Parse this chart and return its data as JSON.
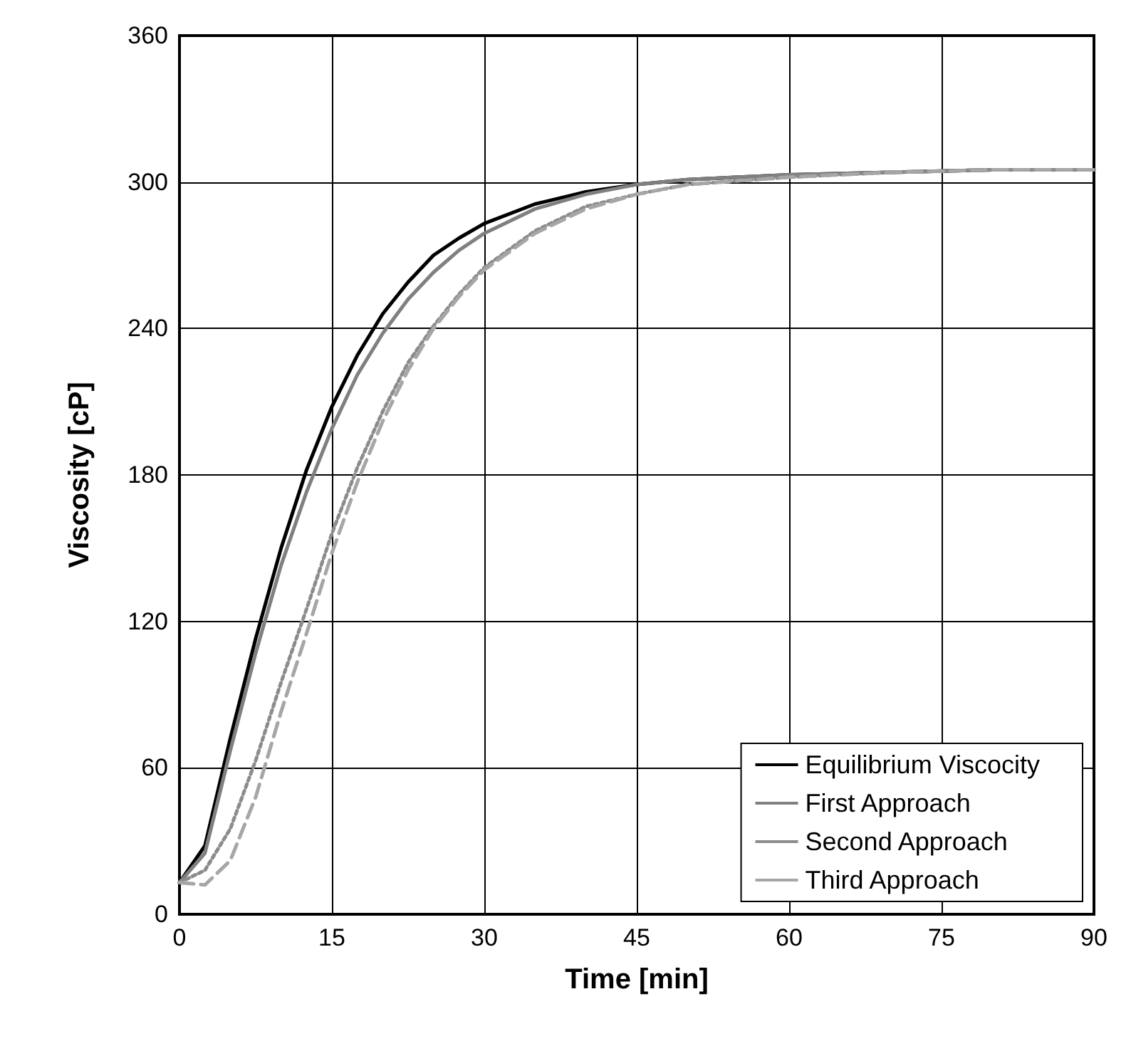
{
  "chart_data": {
    "type": "line",
    "xlabel": "Time [min]",
    "ylabel": "Viscosity [cP]",
    "x": [
      0,
      2.5,
      5,
      7.5,
      10,
      12.5,
      15,
      17.5,
      20,
      22.5,
      25,
      27.5,
      30,
      35,
      40,
      45,
      50,
      60,
      70,
      80,
      90
    ],
    "series": [
      {
        "name": "Equilibrium Viscocity",
        "color": "#000000",
        "line_style": "solid",
        "values": [
          13,
          28,
          72,
          113,
          150,
          182,
          208,
          229,
          246,
          259,
          270,
          277,
          283,
          291,
          296,
          299,
          301,
          303,
          304,
          305,
          305
        ]
      },
      {
        "name": "First Approach",
        "color": "#808080",
        "line_style": "solid",
        "values": [
          13,
          25,
          67,
          107,
          143,
          173,
          199,
          221,
          238,
          252,
          263,
          272,
          279,
          289,
          295,
          299,
          301,
          303,
          304,
          305,
          305
        ]
      },
      {
        "name": "Second Approach",
        "color": "#8c8c8c",
        "line_style": "dotted",
        "values": [
          13,
          18,
          35,
          63,
          95,
          125,
          156,
          183,
          206,
          226,
          241,
          254,
          265,
          280,
          290,
          295,
          299,
          302,
          304,
          305,
          305
        ]
      },
      {
        "name": "Third Approach",
        "color": "#a6a6a6",
        "line_style": "dashed",
        "values": [
          13,
          12,
          22,
          48,
          83,
          115,
          148,
          177,
          202,
          223,
          240,
          253,
          264,
          279,
          289,
          295,
          299,
          302,
          304,
          305,
          305
        ]
      }
    ],
    "xlim": [
      0,
      90
    ],
    "xticks": [
      0,
      15,
      30,
      45,
      60,
      75,
      90
    ],
    "ylim": [
      0,
      360
    ],
    "yticks": [
      0,
      60,
      120,
      180,
      240,
      300,
      360
    ],
    "grid": true,
    "legend": "bottom right",
    "marker": "none"
  }
}
